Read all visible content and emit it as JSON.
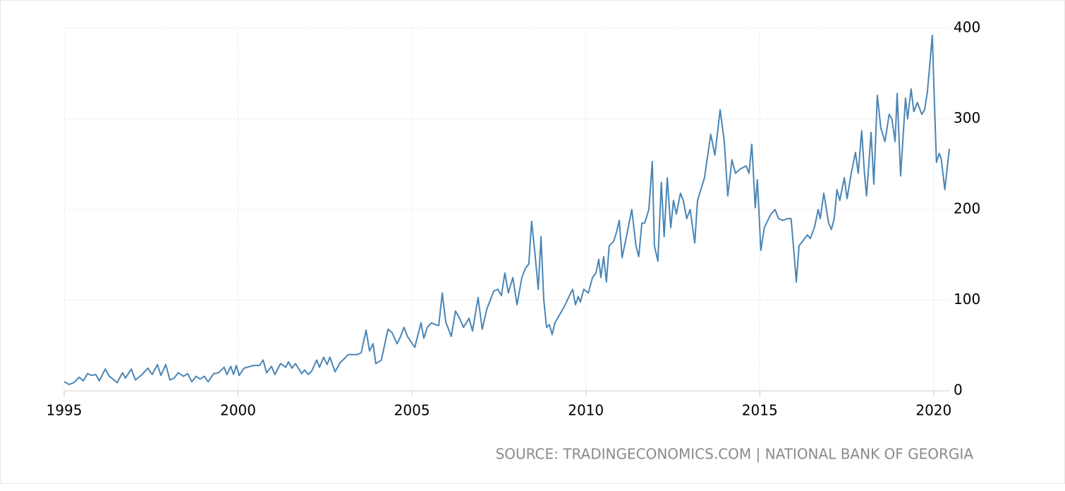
{
  "chart_data": {
    "type": "line",
    "x": [
      1995.0,
      1995.14,
      1995.28,
      1995.43,
      1995.55,
      1995.67,
      1995.79,
      1995.91,
      1996.01,
      1996.18,
      1996.3,
      1996.4,
      1996.52,
      1996.68,
      1996.76,
      1996.93,
      1997.05,
      1997.21,
      1997.41,
      1997.53,
      1997.68,
      1997.78,
      1997.92,
      1998.04,
      1998.16,
      1998.28,
      1998.43,
      1998.55,
      1998.67,
      1998.79,
      1998.91,
      1999.03,
      1999.14,
      1999.3,
      1999.44,
      1999.6,
      1999.68,
      1999.79,
      1999.87,
      1999.95,
      2000.03,
      2000.17,
      2000.45,
      2000.62,
      2000.72,
      2000.82,
      2000.96,
      2001.06,
      2001.22,
      2001.37,
      2001.45,
      2001.55,
      2001.65,
      2001.83,
      2001.91,
      2002.02,
      2002.12,
      2002.26,
      2002.34,
      2002.46,
      2002.56,
      2002.64,
      2002.79,
      2002.93,
      2003.07,
      2003.17,
      2003.43,
      2003.54,
      2003.68,
      2003.78,
      2003.88,
      2003.96,
      2004.12,
      2004.31,
      2004.43,
      2004.57,
      2004.65,
      2004.77,
      2004.87,
      2005.08,
      2005.26,
      2005.34,
      2005.44,
      2005.56,
      2005.67,
      2005.77,
      2005.87,
      2005.97,
      2006.13,
      2006.25,
      2006.37,
      2006.48,
      2006.64,
      2006.74,
      2006.9,
      2007.02,
      2007.15,
      2007.35,
      2007.47,
      2007.57,
      2007.67,
      2007.77,
      2007.9,
      2008.02,
      2008.16,
      2008.26,
      2008.36,
      2008.44,
      2008.54,
      2008.63,
      2008.71,
      2008.79,
      2008.87,
      2008.95,
      2009.03,
      2009.11,
      2009.38,
      2009.54,
      2009.62,
      2009.7,
      2009.78,
      2009.84,
      2009.94,
      2010.07,
      2010.19,
      2010.29,
      2010.37,
      2010.43,
      2010.51,
      2010.59,
      2010.67,
      2010.8,
      2010.88,
      2010.96,
      2011.04,
      2011.14,
      2011.32,
      2011.44,
      2011.52,
      2011.61,
      2011.69,
      2011.81,
      2011.91,
      2011.97,
      2012.07,
      2012.17,
      2012.25,
      2012.34,
      2012.44,
      2012.52,
      2012.6,
      2012.72,
      2012.8,
      2012.9,
      2013.0,
      2013.13,
      2013.21,
      2013.29,
      2013.41,
      2013.59,
      2013.71,
      2013.86,
      2013.98,
      2014.08,
      2014.2,
      2014.3,
      2014.45,
      2014.61,
      2014.69,
      2014.77,
      2014.87,
      2014.93,
      2015.03,
      2015.13,
      2015.32,
      2015.44,
      2015.54,
      2015.66,
      2015.8,
      2015.9,
      2016.01,
      2016.05,
      2016.13,
      2016.23,
      2016.37,
      2016.45,
      2016.57,
      2016.68,
      2016.74,
      2016.84,
      2016.98,
      2017.06,
      2017.14,
      2017.22,
      2017.3,
      2017.43,
      2017.51,
      2017.63,
      2017.75,
      2017.83,
      2017.93,
      2018.01,
      2018.07,
      2018.2,
      2018.28,
      2018.38,
      2018.48,
      2018.6,
      2018.72,
      2018.8,
      2018.89,
      2018.95,
      2019.05,
      2019.19,
      2019.25,
      2019.35,
      2019.43,
      2019.53,
      2019.66,
      2019.74,
      2019.82,
      2019.9,
      2019.96,
      2020.02,
      2020.08,
      2020.16,
      2020.22,
      2020.32,
      2020.45
    ],
    "series": [
      {
        "color": "#4a85b5",
        "values": [
          10,
          7,
          9,
          15,
          11,
          19,
          17,
          18,
          11,
          24,
          16,
          13,
          9,
          20,
          14,
          24,
          12,
          17,
          25,
          18,
          29,
          17,
          29,
          12,
          14,
          20,
          16,
          19,
          10,
          16,
          13,
          16,
          10,
          19,
          20,
          26,
          18,
          27,
          18,
          28,
          17,
          25,
          28,
          28,
          34,
          20,
          27,
          18,
          30,
          26,
          32,
          25,
          30,
          19,
          23,
          18,
          22,
          34,
          26,
          37,
          29,
          37,
          21,
          31,
          36,
          40,
          40,
          42,
          67,
          44,
          52,
          30,
          34,
          68,
          64,
          52,
          58,
          70,
          60,
          48,
          75,
          58,
          70,
          75,
          73,
          72,
          108,
          76,
          60,
          88,
          80,
          70,
          80,
          66,
          103,
          68,
          90,
          110,
          112,
          105,
          130,
          108,
          125,
          95,
          125,
          135,
          140,
          187,
          150,
          112,
          170,
          100,
          70,
          73,
          62,
          75,
          93,
          106,
          112,
          95,
          104,
          98,
          112,
          108,
          125,
          130,
          145,
          125,
          148,
          120,
          160,
          165,
          175,
          188,
          147,
          165,
          200,
          160,
          148,
          185,
          185,
          200,
          253,
          160,
          143,
          230,
          170,
          235,
          180,
          210,
          195,
          218,
          210,
          190,
          200,
          163,
          210,
          220,
          235,
          283,
          260,
          310,
          275,
          215,
          255,
          240,
          245,
          248,
          240,
          272,
          202,
          233,
          155,
          180,
          195,
          200,
          190,
          188,
          190,
          190,
          140,
          120,
          160,
          165,
          172,
          168,
          180,
          200,
          190,
          218,
          185,
          178,
          190,
          222,
          210,
          235,
          212,
          240,
          263,
          240,
          287,
          240,
          215,
          285,
          228,
          326,
          290,
          275,
          305,
          300,
          275,
          328,
          237,
          323,
          300,
          333,
          308,
          318,
          305,
          310,
          330,
          365,
          392,
          320,
          252,
          262,
          255,
          222,
          267
        ]
      }
    ],
    "xlim": [
      1995,
      2020.45
    ],
    "xticks": [
      1995,
      2000,
      2005,
      2010,
      2015,
      2020
    ],
    "ylim": [
      0,
      400
    ],
    "yticks": [
      0,
      100,
      200,
      300,
      400
    ],
    "grid": true,
    "source": "SOURCE: TRADINGECONOMICS.COM | NATIONAL BANK OF GEORGIA"
  }
}
